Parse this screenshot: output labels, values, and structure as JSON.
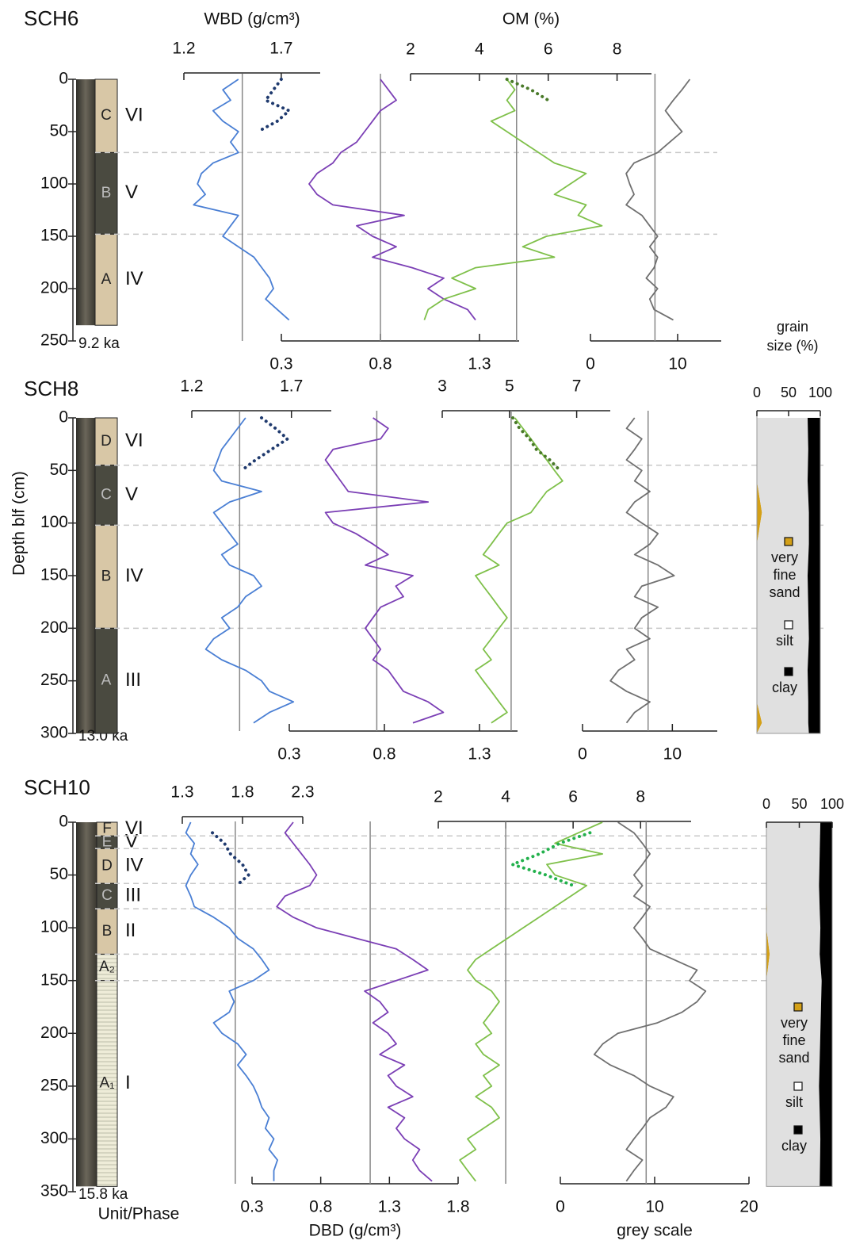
{
  "chart_data": [
    {
      "type": "profile",
      "title": "SCH6",
      "age": "9.2 ka",
      "ylim": [
        0,
        250
      ],
      "yticks": [
        0,
        50,
        100,
        150,
        200,
        250
      ],
      "units": [
        {
          "label": "C",
          "phase": "VI",
          "top": 0,
          "bottom": 70,
          "color": "#d8c7a6"
        },
        {
          "label": "B",
          "phase": "V",
          "top": 70,
          "bottom": 148,
          "color": "#4a4a40"
        },
        {
          "label": "A",
          "phase": "IV",
          "top": 148,
          "bottom": 235,
          "color": "#d8c7a6"
        }
      ],
      "axes": {
        "wbd": {
          "label": "WBD (g/cm³)",
          "xlim": [
            1.2,
            1.9
          ],
          "xticks": [
            1.2,
            1.7
          ]
        },
        "om": {
          "label": "OM (%)",
          "xlim": [
            2,
            9
          ],
          "xticks": [
            2,
            4,
            6,
            8
          ]
        },
        "dbd": {
          "xlim": [
            0.3,
            1.5
          ],
          "xticks": [
            0.3,
            0.8,
            1.3
          ]
        },
        "grey": {
          "xlim": [
            0,
            15
          ],
          "xticks": [
            0,
            10
          ]
        }
      },
      "depth": [
        0,
        10,
        20,
        30,
        40,
        50,
        60,
        70,
        80,
        90,
        100,
        110,
        120,
        130,
        140,
        150,
        160,
        170,
        180,
        190,
        200,
        210,
        220,
        230
      ],
      "series": [
        {
          "axis": "wbd",
          "color": "#4a7fd4",
          "ref": 1.5,
          "values": [
            1.48,
            1.4,
            1.44,
            1.35,
            1.4,
            1.48,
            1.44,
            1.48,
            1.35,
            1.29,
            1.27,
            1.31,
            1.25,
            1.48,
            1.44,
            1.4,
            1.48,
            1.56,
            1.6,
            1.64,
            1.66,
            1.62,
            1.68,
            1.74
          ]
        },
        {
          "axis": "wbd",
          "color": "#1f3a6e",
          "style": "dotted",
          "depth": [
            0,
            10,
            20,
            30,
            40,
            50
          ],
          "values": [
            1.7,
            1.66,
            1.62,
            1.74,
            1.68,
            1.58
          ]
        },
        {
          "axis": "dbd",
          "color": "#7b3fb5",
          "ref": 0.8,
          "values": [
            0.8,
            0.84,
            0.88,
            0.8,
            0.76,
            0.72,
            0.68,
            0.6,
            0.56,
            0.48,
            0.44,
            0.48,
            0.56,
            0.92,
            0.68,
            0.76,
            0.88,
            0.76,
            0.96,
            1.12,
            1.04,
            1.12,
            1.24,
            1.28
          ]
        },
        {
          "axis": "om",
          "color": "#7fc04a",
          "ref": 5.08,
          "values": [
            4.8,
            5.03,
            4.8,
            5.03,
            4.34,
            4.8,
            5.26,
            5.72,
            6.18,
            7.1,
            6.64,
            6.18,
            7.1,
            6.87,
            7.56,
            5.95,
            5.26,
            6.18,
            3.89,
            3.2,
            3.89,
            2.97,
            2.51,
            2.4
          ]
        },
        {
          "axis": "om",
          "color": "#4a7a2a",
          "style": "dotted",
          "depth": [
            0,
            10,
            20
          ],
          "values": [
            4.8,
            5.5,
            6.0
          ]
        },
        {
          "axis": "grey",
          "color": "#707070",
          "ref": 7.4,
          "values": [
            11.4,
            10.5,
            9.5,
            8.6,
            9.5,
            10.5,
            9.1,
            7.7,
            5.0,
            4.1,
            4.5,
            5.0,
            4.1,
            5.9,
            6.8,
            7.7,
            6.8,
            7.7,
            7.3,
            6.4,
            7.7,
            6.8,
            7.3,
            9.5
          ]
        }
      ]
    },
    {
      "type": "profile",
      "title": "SCH8",
      "age": "13.0 ka",
      "ylabel": "Depth blf (cm)",
      "ylim": [
        0,
        300
      ],
      "yticks": [
        0,
        50,
        100,
        150,
        200,
        250,
        300
      ],
      "units": [
        {
          "label": "D",
          "phase": "VI",
          "top": 0,
          "bottom": 45,
          "color": "#d8c7a6"
        },
        {
          "label": "C",
          "phase": "V",
          "top": 45,
          "bottom": 102,
          "color": "#4a4a40"
        },
        {
          "label": "B",
          "phase": "IV",
          "top": 102,
          "bottom": 200,
          "color": "#d8c7a6"
        },
        {
          "label": "A",
          "phase": "III",
          "top": 200,
          "bottom": 300,
          "color": "#4a4a40"
        }
      ],
      "axes": {
        "wbd": {
          "xlim": [
            1.2,
            1.9
          ],
          "xticks": [
            1.2,
            1.7
          ]
        },
        "om": {
          "xlim": [
            3,
            8
          ],
          "xticks": [
            3,
            5,
            7
          ]
        },
        "dbd": {
          "xlim": [
            0.3,
            1.5
          ],
          "xticks": [
            0.3,
            0.8,
            1.3
          ]
        },
        "grey": {
          "xlim": [
            0,
            15
          ],
          "xticks": [
            0,
            10
          ]
        }
      },
      "depth": [
        0,
        10,
        20,
        30,
        40,
        50,
        60,
        70,
        80,
        90,
        100,
        110,
        120,
        130,
        140,
        150,
        160,
        170,
        180,
        190,
        200,
        210,
        220,
        230,
        240,
        250,
        260,
        270,
        280,
        290
      ],
      "series": [
        {
          "axis": "wbd",
          "color": "#4a7fd4",
          "ref": 1.44,
          "values": [
            1.47,
            1.43,
            1.39,
            1.35,
            1.33,
            1.31,
            1.35,
            1.55,
            1.39,
            1.31,
            1.35,
            1.39,
            1.43,
            1.35,
            1.39,
            1.51,
            1.55,
            1.47,
            1.43,
            1.35,
            1.39,
            1.31,
            1.27,
            1.35,
            1.47,
            1.55,
            1.59,
            1.71,
            1.59,
            1.51
          ]
        },
        {
          "axis": "wbd",
          "color": "#1f3a6e",
          "style": "dotted",
          "depth": [
            0,
            10,
            20,
            30,
            40,
            50
          ],
          "values": [
            1.55,
            1.62,
            1.68,
            1.6,
            1.52,
            1.45
          ]
        },
        {
          "axis": "dbd",
          "color": "#7b3fb5",
          "ref": 0.76,
          "values": [
            0.74,
            0.82,
            0.78,
            0.53,
            0.49,
            0.53,
            0.57,
            0.61,
            1.03,
            0.49,
            0.53,
            0.65,
            0.74,
            0.82,
            0.7,
            0.95,
            0.86,
            0.9,
            0.78,
            0.74,
            0.7,
            0.74,
            0.78,
            0.74,
            0.82,
            0.86,
            0.9,
            1.03,
            1.11,
            0.95
          ]
        },
        {
          "axis": "om",
          "color": "#7fc04a",
          "ref": 5.05,
          "values": [
            5.16,
            5.4,
            5.64,
            5.87,
            6.11,
            6.34,
            6.58,
            6.11,
            5.87,
            5.64,
            4.93,
            4.69,
            4.46,
            4.22,
            4.69,
            3.99,
            4.22,
            4.46,
            4.69,
            4.93,
            4.69,
            4.46,
            4.22,
            4.46,
            3.99,
            4.22,
            4.46,
            4.69,
            4.93,
            4.46
          ]
        },
        {
          "axis": "om",
          "color": "#4a7a2a",
          "style": "dotted",
          "depth": [
            0,
            10,
            20,
            30,
            40,
            50
          ],
          "values": [
            5.1,
            5.3,
            5.6,
            5.8,
            6.2,
            6.5
          ]
        },
        {
          "axis": "grey",
          "color": "#707070",
          "ref": 7.3,
          "values": [
            5.8,
            4.9,
            6.6,
            5.8,
            4.9,
            6.6,
            5.8,
            7.5,
            5.8,
            4.9,
            6.6,
            8.4,
            7.5,
            5.8,
            8.4,
            10.2,
            6.6,
            5.8,
            8.4,
            6.6,
            5.8,
            7.5,
            4.9,
            5.8,
            4.0,
            3.1,
            4.9,
            7.5,
            5.8,
            4.9
          ]
        }
      ],
      "grain": {
        "label": "grain size (%)",
        "xlim": [
          0,
          100
        ],
        "xticks": [
          0,
          50,
          100
        ],
        "depth": [
          0,
          30,
          60,
          90,
          120,
          150,
          180,
          210,
          240,
          270,
          290,
          300
        ],
        "series": [
          {
            "name": "very fine sand",
            "color": "#d4a017",
            "values": [
              0,
              0,
              0,
              8,
              0,
              0,
              0,
              0,
              0,
              0,
              8,
              0
            ]
          },
          {
            "name": "silt",
            "color": "#e0e0e0",
            "values": [
              80,
              81,
              80,
              74,
              82,
              80,
              81,
              82,
              80,
              81,
              73,
              82
            ]
          },
          {
            "name": "clay",
            "color": "#000000",
            "values": [
              20,
              19,
              20,
              18,
              18,
              20,
              19,
              18,
              20,
              19,
              19,
              18
            ]
          }
        ]
      }
    },
    {
      "type": "profile",
      "title": "SCH10",
      "age": "15.8 ka",
      "unit_label": "Unit/Phase",
      "ylim": [
        0,
        350
      ],
      "yticks": [
        0,
        50,
        100,
        150,
        200,
        250,
        300,
        350
      ],
      "units": [
        {
          "label": "F",
          "phase": "VI",
          "top": 0,
          "bottom": 13,
          "color": "#d8c7a6"
        },
        {
          "label": "E",
          "phase": "V",
          "top": 13,
          "bottom": 25,
          "color": "#4a4a40"
        },
        {
          "label": "D",
          "phase": "IV",
          "top": 25,
          "bottom": 58,
          "color": "#d8c7a6"
        },
        {
          "label": "C",
          "phase": "III",
          "top": 58,
          "bottom": 82,
          "color": "#4a4a40"
        },
        {
          "label": "B",
          "phase": "II",
          "top": 82,
          "bottom": 125,
          "color": "#d8c7a6"
        },
        {
          "label": "A₂",
          "top": 125,
          "bottom": 150,
          "color": "#eeecd8"
        },
        {
          "label": "A₁",
          "phase": "I",
          "top": 150,
          "bottom": 345,
          "color": "#eeecd8"
        }
      ],
      "axes": {
        "wbd": {
          "xlim": [
            1.3,
            2.3
          ],
          "xticks": [
            1.3,
            1.8,
            2.3
          ]
        },
        "om": {
          "xlim": [
            2,
            9.5
          ],
          "xticks": [
            2,
            4,
            6,
            8
          ]
        },
        "dbd": {
          "label": "DBD (g/cm³)",
          "xlim": [
            0.3,
            1.8
          ],
          "xticks": [
            0.3,
            0.8,
            1.3,
            1.8
          ]
        },
        "grey": {
          "label": "grey scale",
          "xlim": [
            0,
            20
          ],
          "xticks": [
            0,
            10,
            20
          ]
        }
      },
      "depth": [
        0,
        10,
        20,
        30,
        40,
        50,
        60,
        70,
        80,
        90,
        100,
        110,
        120,
        130,
        140,
        150,
        160,
        170,
        180,
        190,
        200,
        210,
        220,
        230,
        240,
        250,
        260,
        270,
        280,
        290,
        300,
        310,
        320,
        330,
        340
      ],
      "series": [
        {
          "axis": "wbd",
          "color": "#4a7fd4",
          "ref": 1.74,
          "values": [
            1.37,
            1.33,
            1.4,
            1.37,
            1.43,
            1.37,
            1.33,
            1.37,
            1.4,
            1.56,
            1.69,
            1.76,
            1.89,
            1.96,
            2.02,
            1.89,
            1.69,
            1.73,
            1.69,
            1.56,
            1.63,
            1.76,
            1.83,
            1.76,
            1.83,
            1.89,
            1.93,
            1.96,
            2.02,
            1.99,
            2.06,
            2.02,
            2.09,
            2.06,
            2.06
          ]
        },
        {
          "axis": "wbd",
          "color": "#1f3a6e",
          "style": "dotted",
          "depth": [
            10,
            20,
            30,
            40,
            50,
            60
          ],
          "values": [
            1.55,
            1.65,
            1.7,
            1.8,
            1.85,
            1.75
          ]
        },
        {
          "axis": "dbd",
          "color": "#7b3fb5",
          "ref": 1.16,
          "values": [
            0.6,
            0.54,
            0.6,
            0.66,
            0.72,
            0.77,
            0.72,
            0.54,
            0.48,
            0.6,
            0.77,
            1.06,
            1.35,
            1.47,
            1.58,
            1.35,
            1.12,
            1.23,
            1.29,
            1.18,
            1.29,
            1.35,
            1.23,
            1.41,
            1.29,
            1.35,
            1.47,
            1.29,
            1.41,
            1.35,
            1.41,
            1.52,
            1.47,
            1.52,
            1.61
          ]
        },
        {
          "axis": "om",
          "color": "#7fc04a",
          "ref": 4.0,
          "values": [
            6.87,
            6.16,
            5.46,
            6.87,
            5.22,
            5.46,
            6.4,
            5.93,
            5.46,
            4.99,
            4.52,
            4.05,
            3.58,
            3.11,
            2.87,
            3.11,
            3.58,
            3.81,
            3.58,
            3.34,
            3.58,
            3.11,
            3.34,
            3.81,
            3.34,
            3.58,
            3.11,
            3.58,
            3.81,
            3.34,
            2.87,
            3.11,
            2.64,
            2.87,
            3.11
          ]
        },
        {
          "axis": "om",
          "color": "#22b14c",
          "style": "dotted",
          "depth": [
            10,
            20,
            30,
            40,
            50,
            60
          ],
          "values": [
            6.5,
            5.6,
            5.0,
            4.2,
            5.2,
            6.0
          ]
        },
        {
          "axis": "grey",
          "color": "#707070",
          "ref": 9.1,
          "values": [
            6.1,
            7.8,
            8.7,
            9.5,
            8.7,
            7.8,
            8.7,
            7.8,
            9.5,
            8.7,
            7.8,
            8.7,
            9.5,
            12.0,
            14.5,
            13.7,
            15.4,
            14.5,
            12.9,
            10.3,
            6.1,
            4.5,
            3.6,
            5.3,
            7.8,
            9.5,
            12.0,
            11.2,
            9.5,
            8.7,
            7.8,
            7.0,
            8.7,
            7.8,
            7.0
          ]
        }
      ],
      "grain": {
        "xlim": [
          0,
          100
        ],
        "xticks": [
          0,
          50,
          100
        ],
        "depth": [
          0,
          60,
          82,
          100,
          125,
          150,
          200,
          250,
          300,
          345
        ],
        "series": [
          {
            "name": "very fine sand",
            "color": "#d4a017",
            "values": [
              0,
              0,
              1,
              0,
              5,
              0,
              0,
              0,
              0,
              0
            ]
          },
          {
            "name": "silt",
            "color": "#e0e0e0",
            "values": [
              82,
              80,
              80,
              82,
              76,
              84,
              82,
              80,
              82,
              81
            ]
          },
          {
            "name": "clay",
            "color": "#000000",
            "values": [
              18,
              20,
              19,
              18,
              19,
              16,
              18,
              20,
              18,
              19
            ]
          }
        ]
      }
    }
  ]
}
